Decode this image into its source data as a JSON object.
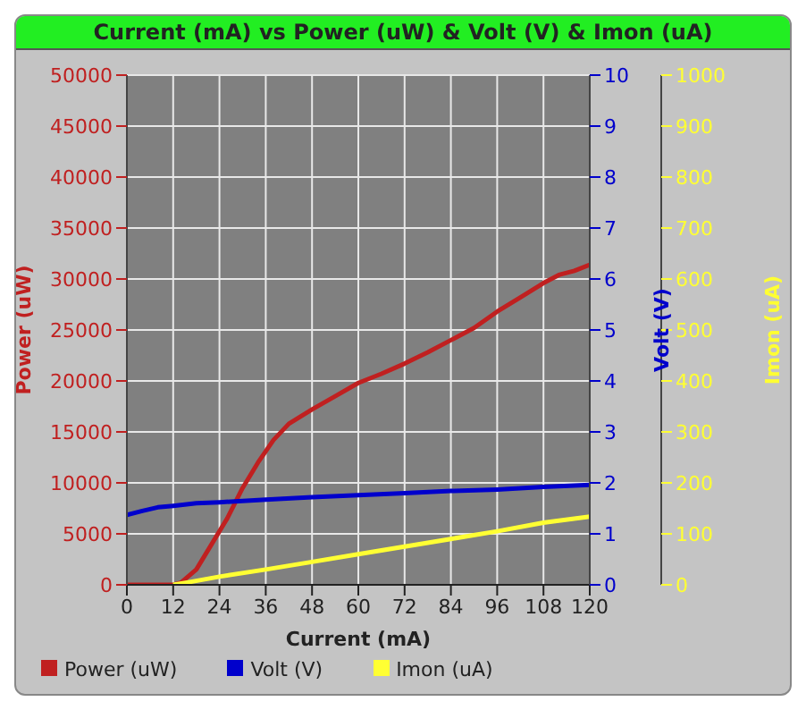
{
  "chart_data": {
    "type": "line",
    "title": "Current (mA) vs Power (uW) & Volt (V) & Imon (uA)",
    "xlabel": "Current (mA)",
    "ylabel": "Power (uW)",
    "y2label": "Volt (V)",
    "y3label": "Imon (uA)",
    "xlim": [
      0,
      120
    ],
    "xticks": [
      0,
      12,
      24,
      36,
      48,
      60,
      72,
      84,
      96,
      108,
      120
    ],
    "ylim": [
      0,
      50000
    ],
    "yticks": [
      0,
      5000,
      10000,
      15000,
      20000,
      25000,
      30000,
      35000,
      40000,
      45000,
      50000
    ],
    "y2lim": [
      0,
      10
    ],
    "y2ticks": [
      0,
      1,
      2,
      3,
      4,
      5,
      6,
      7,
      8,
      9,
      10
    ],
    "y3lim": [
      0,
      1000
    ],
    "y3ticks": [
      0,
      100,
      200,
      300,
      400,
      500,
      600,
      700,
      800,
      900,
      1000
    ],
    "grid": true,
    "legend": "bottom",
    "marker": "none",
    "line_style": "solid",
    "series": [
      {
        "name": "Power (uW)",
        "color": "#c02020",
        "axis": "y",
        "x": [
          0,
          4,
          8,
          12,
          14,
          18,
          22,
          26,
          30,
          34,
          38,
          42,
          48,
          54,
          60,
          66,
          72,
          78,
          84,
          90,
          96,
          102,
          108,
          112,
          116,
          120
        ],
        "values": [
          0,
          0,
          0,
          0,
          200,
          1500,
          4000,
          6500,
          9500,
          12000,
          14200,
          15800,
          17200,
          18500,
          19800,
          20700,
          21700,
          22800,
          24000,
          25200,
          26800,
          28200,
          29600,
          30400,
          30800,
          31400
        ]
      },
      {
        "name": "Volt (V)",
        "color": "#0000cc",
        "axis": "y2",
        "x": [
          0,
          4,
          8,
          12,
          18,
          24,
          36,
          48,
          60,
          72,
          84,
          96,
          108,
          120
        ],
        "values": [
          1.37,
          1.45,
          1.52,
          1.55,
          1.6,
          1.62,
          1.67,
          1.72,
          1.76,
          1.8,
          1.84,
          1.87,
          1.92,
          1.96
        ]
      },
      {
        "name": "Imon (uA)",
        "color": "#ffff33",
        "axis": "y3",
        "x": [
          12,
          16,
          24,
          36,
          48,
          60,
          72,
          84,
          96,
          108,
          120
        ],
        "values": [
          0,
          5,
          16,
          30,
          45,
          60,
          75,
          90,
          105,
          122,
          134
        ]
      }
    ]
  }
}
